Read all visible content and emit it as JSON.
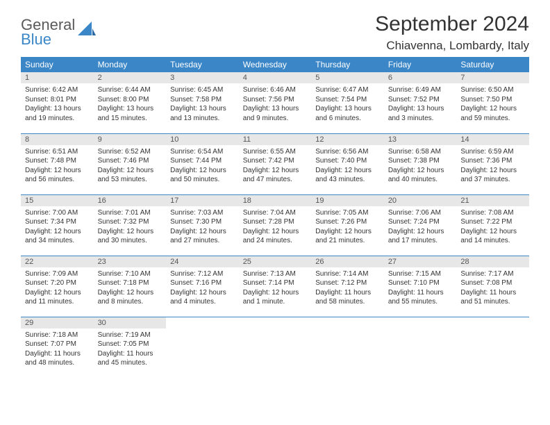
{
  "brand": {
    "line1": "General",
    "line2": "Blue",
    "accent": "#3b86c7",
    "gray": "#5a5a5a"
  },
  "title": "September 2024",
  "location": "Chiavenna, Lombardy, Italy",
  "colors": {
    "header_bg": "#3b86c7",
    "header_text": "#ffffff",
    "daynum_bg": "#e7e7e7",
    "border": "#3b86c7"
  },
  "days_header": [
    "Sunday",
    "Monday",
    "Tuesday",
    "Wednesday",
    "Thursday",
    "Friday",
    "Saturday"
  ],
  "weeks": [
    [
      {
        "n": "1",
        "sr": "6:42 AM",
        "ss": "8:01 PM",
        "dl": "13 hours and 19 minutes."
      },
      {
        "n": "2",
        "sr": "6:44 AM",
        "ss": "8:00 PM",
        "dl": "13 hours and 15 minutes."
      },
      {
        "n": "3",
        "sr": "6:45 AM",
        "ss": "7:58 PM",
        "dl": "13 hours and 13 minutes."
      },
      {
        "n": "4",
        "sr": "6:46 AM",
        "ss": "7:56 PM",
        "dl": "13 hours and 9 minutes."
      },
      {
        "n": "5",
        "sr": "6:47 AM",
        "ss": "7:54 PM",
        "dl": "13 hours and 6 minutes."
      },
      {
        "n": "6",
        "sr": "6:49 AM",
        "ss": "7:52 PM",
        "dl": "13 hours and 3 minutes."
      },
      {
        "n": "7",
        "sr": "6:50 AM",
        "ss": "7:50 PM",
        "dl": "12 hours and 59 minutes."
      }
    ],
    [
      {
        "n": "8",
        "sr": "6:51 AM",
        "ss": "7:48 PM",
        "dl": "12 hours and 56 minutes."
      },
      {
        "n": "9",
        "sr": "6:52 AM",
        "ss": "7:46 PM",
        "dl": "12 hours and 53 minutes."
      },
      {
        "n": "10",
        "sr": "6:54 AM",
        "ss": "7:44 PM",
        "dl": "12 hours and 50 minutes."
      },
      {
        "n": "11",
        "sr": "6:55 AM",
        "ss": "7:42 PM",
        "dl": "12 hours and 47 minutes."
      },
      {
        "n": "12",
        "sr": "6:56 AM",
        "ss": "7:40 PM",
        "dl": "12 hours and 43 minutes."
      },
      {
        "n": "13",
        "sr": "6:58 AM",
        "ss": "7:38 PM",
        "dl": "12 hours and 40 minutes."
      },
      {
        "n": "14",
        "sr": "6:59 AM",
        "ss": "7:36 PM",
        "dl": "12 hours and 37 minutes."
      }
    ],
    [
      {
        "n": "15",
        "sr": "7:00 AM",
        "ss": "7:34 PM",
        "dl": "12 hours and 34 minutes."
      },
      {
        "n": "16",
        "sr": "7:01 AM",
        "ss": "7:32 PM",
        "dl": "12 hours and 30 minutes."
      },
      {
        "n": "17",
        "sr": "7:03 AM",
        "ss": "7:30 PM",
        "dl": "12 hours and 27 minutes."
      },
      {
        "n": "18",
        "sr": "7:04 AM",
        "ss": "7:28 PM",
        "dl": "12 hours and 24 minutes."
      },
      {
        "n": "19",
        "sr": "7:05 AM",
        "ss": "7:26 PM",
        "dl": "12 hours and 21 minutes."
      },
      {
        "n": "20",
        "sr": "7:06 AM",
        "ss": "7:24 PM",
        "dl": "12 hours and 17 minutes."
      },
      {
        "n": "21",
        "sr": "7:08 AM",
        "ss": "7:22 PM",
        "dl": "12 hours and 14 minutes."
      }
    ],
    [
      {
        "n": "22",
        "sr": "7:09 AM",
        "ss": "7:20 PM",
        "dl": "12 hours and 11 minutes."
      },
      {
        "n": "23",
        "sr": "7:10 AM",
        "ss": "7:18 PM",
        "dl": "12 hours and 8 minutes."
      },
      {
        "n": "24",
        "sr": "7:12 AM",
        "ss": "7:16 PM",
        "dl": "12 hours and 4 minutes."
      },
      {
        "n": "25",
        "sr": "7:13 AM",
        "ss": "7:14 PM",
        "dl": "12 hours and 1 minute."
      },
      {
        "n": "26",
        "sr": "7:14 AM",
        "ss": "7:12 PM",
        "dl": "11 hours and 58 minutes."
      },
      {
        "n": "27",
        "sr": "7:15 AM",
        "ss": "7:10 PM",
        "dl": "11 hours and 55 minutes."
      },
      {
        "n": "28",
        "sr": "7:17 AM",
        "ss": "7:08 PM",
        "dl": "11 hours and 51 minutes."
      }
    ],
    [
      {
        "n": "29",
        "sr": "7:18 AM",
        "ss": "7:07 PM",
        "dl": "11 hours and 48 minutes."
      },
      {
        "n": "30",
        "sr": "7:19 AM",
        "ss": "7:05 PM",
        "dl": "11 hours and 45 minutes."
      },
      null,
      null,
      null,
      null,
      null
    ]
  ],
  "labels": {
    "sunrise": "Sunrise:",
    "sunset": "Sunset:",
    "daylight": "Daylight:"
  }
}
